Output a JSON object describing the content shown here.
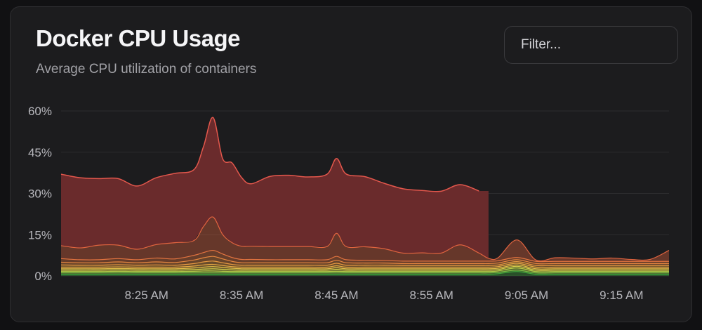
{
  "header": {
    "title": "Docker CPU Usage",
    "subtitle": "Average CPU utilization of containers"
  },
  "filter": {
    "placeholder": "Filter..."
  },
  "colors": {
    "background": "#1c1c1e",
    "grid": "#2c2c2f",
    "axis_text": "#b8b8bd",
    "top_series": "#e3574c"
  },
  "chart_data": {
    "type": "area",
    "stacked": true,
    "x_ticks": [
      "8:25 AM",
      "8:35 AM",
      "8:45 AM",
      "8:55 AM",
      "9:05 AM",
      "9:15 AM"
    ],
    "y_ticks": [
      "0%",
      "15%",
      "30%",
      "45%",
      "60%"
    ],
    "ylim": [
      0,
      60
    ],
    "xlim": [
      "8:16 AM",
      "9:20 AM"
    ],
    "grid": true,
    "x": [
      "8:16",
      "8:18",
      "8:20",
      "8:22",
      "8:24",
      "8:26",
      "8:28",
      "8:30",
      "8:31",
      "8:32",
      "8:33",
      "8:34",
      "8:35",
      "8:36",
      "8:38",
      "8:40",
      "8:42",
      "8:44",
      "8:45",
      "8:46",
      "8:48",
      "8:50",
      "8:52",
      "8:54",
      "8:56",
      "8:58",
      "9:00",
      "9:01",
      "9:02",
      "9:04",
      "9:06",
      "9:08",
      "9:10",
      "9:12",
      "9:14",
      "9:16",
      "9:18",
      "9:20"
    ],
    "top_segments": [
      {
        "from": "8:16",
        "to": "9:01",
        "color": "#6a2b2c"
      }
    ],
    "series": [
      {
        "color": "#3fa63c",
        "values": [
          0.6,
          0.6,
          0.6,
          0.6,
          0.6,
          0.6,
          0.6,
          0.6,
          0.6,
          0.6,
          0.6,
          0.6,
          0.6,
          0.6,
          0.6,
          0.6,
          0.6,
          0.6,
          0.6,
          0.6,
          0.6,
          0.6,
          0.6,
          0.6,
          0.6,
          0.6,
          0.6,
          0.6,
          0.8,
          1.6,
          0.6,
          0.6,
          0.6,
          0.6,
          0.6,
          0.6,
          0.6,
          0.6
        ]
      },
      {
        "color": "#7dc247",
        "values": [
          0.5,
          0.5,
          0.5,
          0.5,
          0.5,
          0.5,
          0.5,
          0.5,
          0.5,
          0.5,
          0.5,
          0.5,
          0.5,
          0.5,
          0.5,
          0.5,
          0.5,
          0.5,
          0.5,
          0.5,
          0.5,
          0.5,
          0.5,
          0.5,
          0.5,
          0.5,
          0.5,
          0.5,
          0.5,
          0.5,
          0.5,
          0.5,
          0.5,
          0.5,
          0.5,
          0.5,
          0.5,
          0.5
        ]
      },
      {
        "color": "#b9d24a",
        "values": [
          0.5,
          0.5,
          0.5,
          0.6,
          0.5,
          0.5,
          0.5,
          0.6,
          0.7,
          0.7,
          0.6,
          0.5,
          0.5,
          0.5,
          0.5,
          0.5,
          0.5,
          0.5,
          0.6,
          0.5,
          0.5,
          0.5,
          0.5,
          0.5,
          0.5,
          0.5,
          0.5,
          0.5,
          0.5,
          0.8,
          0.5,
          0.5,
          0.5,
          0.5,
          0.5,
          0.5,
          0.5,
          0.5
        ]
      },
      {
        "color": "#d8d04c",
        "values": [
          0.5,
          0.5,
          0.5,
          0.5,
          0.5,
          0.5,
          0.5,
          0.6,
          0.7,
          0.8,
          0.7,
          0.6,
          0.5,
          0.5,
          0.5,
          0.5,
          0.5,
          0.5,
          0.7,
          0.5,
          0.5,
          0.5,
          0.5,
          0.5,
          0.5,
          0.5,
          0.5,
          0.5,
          0.5,
          0.6,
          0.5,
          0.5,
          0.5,
          0.5,
          0.5,
          0.5,
          0.5,
          0.5
        ]
      },
      {
        "color": "#e3c04a",
        "values": [
          0.5,
          0.5,
          0.5,
          0.5,
          0.5,
          0.5,
          0.5,
          0.6,
          0.7,
          0.8,
          0.7,
          0.6,
          0.5,
          0.5,
          0.5,
          0.5,
          0.5,
          0.5,
          0.6,
          0.5,
          0.5,
          0.5,
          0.5,
          0.5,
          0.5,
          0.5,
          0.5,
          0.5,
          0.5,
          0.5,
          0.5,
          0.5,
          0.5,
          0.5,
          0.5,
          0.5,
          0.5,
          0.5
        ]
      },
      {
        "color": "#e6a845",
        "values": [
          0.6,
          0.6,
          0.6,
          0.6,
          0.6,
          0.6,
          0.6,
          0.7,
          0.8,
          0.8,
          0.7,
          0.6,
          0.6,
          0.6,
          0.6,
          0.6,
          0.6,
          0.6,
          0.7,
          0.6,
          0.6,
          0.6,
          0.6,
          0.6,
          0.6,
          0.6,
          0.6,
          0.6,
          0.6,
          0.6,
          0.6,
          0.6,
          0.6,
          0.6,
          0.6,
          0.6,
          0.6,
          0.6
        ]
      },
      {
        "color": "#e89a42",
        "values": [
          0.8,
          0.7,
          0.7,
          0.8,
          0.7,
          0.8,
          0.7,
          0.9,
          1.1,
          1.2,
          1.0,
          0.8,
          0.7,
          0.7,
          0.7,
          0.7,
          0.7,
          0.7,
          0.9,
          0.7,
          0.7,
          0.7,
          0.6,
          0.6,
          0.6,
          0.6,
          0.6,
          0.6,
          0.6,
          0.6,
          0.6,
          0.6,
          0.6,
          0.6,
          0.6,
          0.6,
          0.6,
          0.6
        ]
      },
      {
        "color": "#e68640",
        "values": [
          1.0,
          0.9,
          0.9,
          1.0,
          0.9,
          1.1,
          1.0,
          1.3,
          1.5,
          1.7,
          1.4,
          1.1,
          0.9,
          0.9,
          0.9,
          0.9,
          0.9,
          0.9,
          1.1,
          0.9,
          0.8,
          0.8,
          0.7,
          0.7,
          0.7,
          0.7,
          0.7,
          0.7,
          0.7,
          0.7,
          0.7,
          0.7,
          0.7,
          0.7,
          0.7,
          0.7,
          0.7,
          0.7
        ]
      },
      {
        "color": "#e37440",
        "values": [
          1.3,
          1.1,
          1.1,
          1.2,
          1.1,
          1.4,
          1.3,
          1.7,
          1.9,
          2.2,
          1.8,
          1.4,
          1.2,
          1.2,
          1.1,
          1.1,
          1.1,
          1.1,
          1.4,
          1.1,
          1.0,
          0.9,
          0.9,
          0.9,
          0.9,
          0.9,
          0.9,
          0.9,
          0.8,
          0.8,
          0.8,
          0.8,
          0.8,
          0.8,
          0.8,
          0.8,
          0.8,
          0.8
        ]
      },
      {
        "color": "#e0643f",
        "values": [
          4.7,
          4.3,
          5.3,
          4.9,
          3.8,
          4.9,
          5.9,
          5.4,
          9.5,
          12.1,
          7.1,
          5.4,
          4.8,
          4.8,
          4.8,
          4.8,
          4.8,
          4.8,
          8.4,
          4.8,
          4.9,
          4.3,
          2.9,
          3.0,
          2.9,
          5.9,
          2.9,
          1.0,
          1.1,
          6.4,
          0.5,
          1.3,
          1.2,
          0.9,
          1.2,
          0.7,
          0.7,
          4.0
        ]
      },
      {
        "color": "#e3574c",
        "values": [
          26.0,
          25.5,
          24.2,
          24.2,
          23.0,
          24.3,
          25.2,
          25.8,
          29.1,
          36.2,
          27.6,
          29.0,
          25.0,
          22.7,
          25.5,
          25.9,
          25.3,
          26.3,
          27.2,
          26.4,
          25.5,
          23.8,
          23.4,
          22.7,
          22.5,
          21.9,
          22.6,
          0,
          0,
          0,
          0,
          0,
          0,
          0,
          0,
          0,
          0,
          0
        ]
      }
    ]
  }
}
